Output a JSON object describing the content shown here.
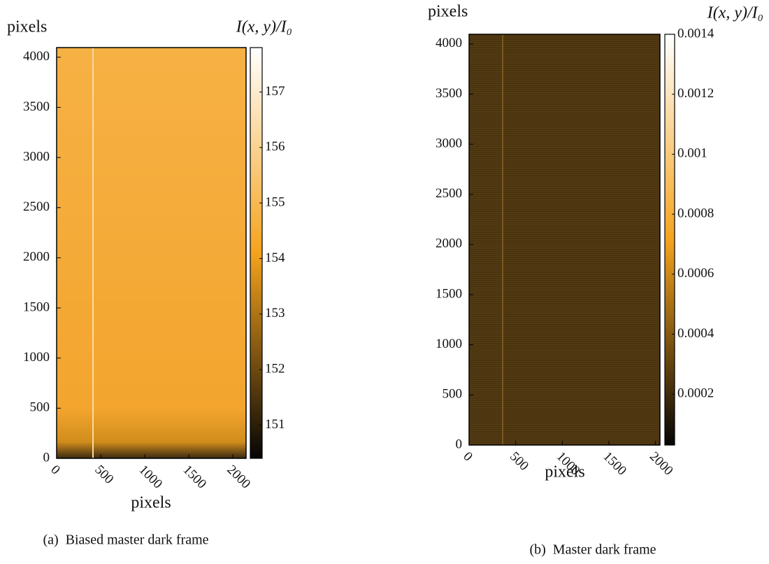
{
  "chart_data": [
    {
      "type": "heatmap",
      "ylabel": "pixels",
      "xlabel": "pixels",
      "colorbar_label": "I(x, y)/I₀",
      "caption_label": "(a)",
      "caption": "Biased master dark frame",
      "xlim": [
        0,
        2150
      ],
      "xticks": [
        0,
        500,
        1000,
        1500,
        2000
      ],
      "ylim": [
        0,
        4096
      ],
      "yticks": [
        0,
        500,
        1000,
        1500,
        2000,
        2500,
        3000,
        3500,
        4000
      ],
      "clim": [
        150.4,
        157.8
      ],
      "cticks": [
        151,
        152,
        153,
        154,
        155,
        156,
        157
      ],
      "colormap": [
        "#050505",
        "#f5a31c",
        "#ffffff"
      ]
    },
    {
      "type": "heatmap",
      "ylabel": "pixels",
      "xlabel": "pixels",
      "colorbar_label": "I(x, y)/I₀",
      "caption_label": "(b)",
      "caption": "Master dark frame",
      "xlim": [
        0,
        2048
      ],
      "xticks": [
        0,
        500,
        1000,
        1500,
        2000
      ],
      "ylim": [
        0,
        4096
      ],
      "yticks": [
        0,
        500,
        1000,
        1500,
        2000,
        2500,
        3000,
        3500,
        4000
      ],
      "clim": [
        3e-05,
        0.0014
      ],
      "cticks": [
        0.0002,
        0.0004,
        0.0006,
        0.0008,
        0.001,
        0.0012,
        0.0014
      ],
      "colormap": [
        "#050505",
        "#f5a31c",
        "#ffffff"
      ]
    }
  ]
}
